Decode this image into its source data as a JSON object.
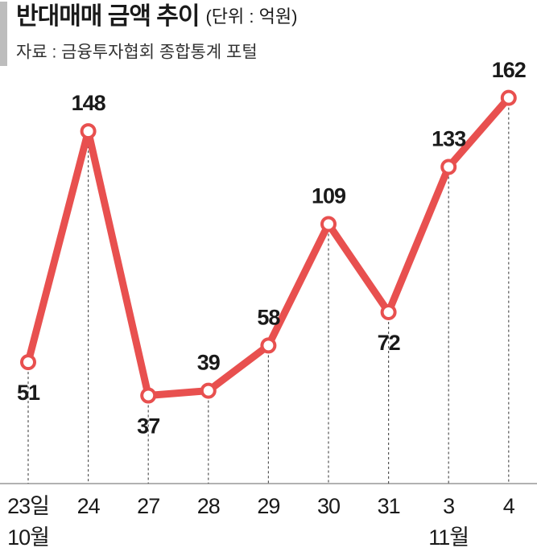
{
  "chart_data": {
    "type": "line",
    "title": "반대매매 금액 추이",
    "unit": "(단위 : 억원)",
    "subtitle": "자료 : 금융투자협회 종합통계 포털",
    "categories": [
      "23일",
      "24",
      "27",
      "28",
      "29",
      "30",
      "31",
      "3",
      "4"
    ],
    "sublabels": [
      "10월",
      null,
      null,
      null,
      null,
      null,
      null,
      "11월",
      null
    ],
    "series": [
      {
        "color": "#e8504f",
        "values": [
          51,
          148,
          37,
          39,
          58,
          109,
          72,
          133,
          162
        ]
      }
    ],
    "ylim": [
      0,
      170
    ]
  }
}
